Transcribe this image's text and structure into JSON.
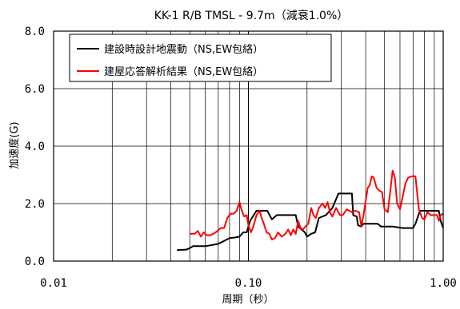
{
  "chart_data": {
    "type": "line",
    "title": "KK-1 R/B TMSL - 9.7m（減衰1.0%）",
    "xlabel": "周期（秒）",
    "ylabel": "加速度(G)",
    "xscale": "log",
    "xlim": [
      0.01,
      1.0
    ],
    "ylim": [
      0.0,
      8.0
    ],
    "x_ticks": [
      0.01,
      0.1,
      1.0
    ],
    "x_tick_labels": [
      "0.01",
      "0.10",
      "1.00"
    ],
    "y_ticks": [
      0,
      2,
      4,
      6,
      8
    ],
    "y_tick_labels": [
      "0.0",
      "2.0",
      "4.0",
      "6.0",
      "8.0"
    ],
    "grid": true,
    "legend_position": "top-left",
    "series": [
      {
        "name": "建設時設計地震動（NS,EW包絡）",
        "color": "#000000",
        "points": [
          [
            0.043,
            0.38
          ],
          [
            0.048,
            0.4
          ],
          [
            0.05,
            0.45
          ],
          [
            0.052,
            0.52
          ],
          [
            0.06,
            0.52
          ],
          [
            0.064,
            0.55
          ],
          [
            0.07,
            0.6
          ],
          [
            0.075,
            0.7
          ],
          [
            0.08,
            0.8
          ],
          [
            0.085,
            0.82
          ],
          [
            0.09,
            0.85
          ],
          [
            0.094,
            1.0
          ],
          [
            0.098,
            1.0
          ],
          [
            0.102,
            1.4
          ],
          [
            0.11,
            1.75
          ],
          [
            0.125,
            1.75
          ],
          [
            0.132,
            1.45
          ],
          [
            0.14,
            1.6
          ],
          [
            0.16,
            1.6
          ],
          [
            0.175,
            1.6
          ],
          [
            0.18,
            1.2
          ],
          [
            0.195,
            1.0
          ],
          [
            0.2,
            0.85
          ],
          [
            0.21,
            0.95
          ],
          [
            0.22,
            1.0
          ],
          [
            0.23,
            1.5
          ],
          [
            0.25,
            1.6
          ],
          [
            0.27,
            1.85
          ],
          [
            0.29,
            2.35
          ],
          [
            0.34,
            2.35
          ],
          [
            0.345,
            1.6
          ],
          [
            0.36,
            1.55
          ],
          [
            0.365,
            1.25
          ],
          [
            0.38,
            1.2
          ],
          [
            0.39,
            1.3
          ],
          [
            0.42,
            1.3
          ],
          [
            0.46,
            1.3
          ],
          [
            0.48,
            1.2
          ],
          [
            0.55,
            1.2
          ],
          [
            0.62,
            1.15
          ],
          [
            0.7,
            1.15
          ],
          [
            0.72,
            1.3
          ],
          [
            0.76,
            1.75
          ],
          [
            0.8,
            1.75
          ],
          [
            0.95,
            1.75
          ],
          [
            0.97,
            1.4
          ],
          [
            1.0,
            1.15
          ]
        ]
      },
      {
        "name": "建屋応答解析結果（NS,EW包絡）",
        "color": "#ff0000",
        "points": [
          [
            0.05,
            0.95
          ],
          [
            0.053,
            0.95
          ],
          [
            0.055,
            1.05
          ],
          [
            0.057,
            0.85
          ],
          [
            0.059,
            1.0
          ],
          [
            0.061,
            0.9
          ],
          [
            0.064,
            0.9
          ],
          [
            0.066,
            0.95
          ],
          [
            0.068,
            1.0
          ],
          [
            0.072,
            1.15
          ],
          [
            0.075,
            1.15
          ],
          [
            0.078,
            1.5
          ],
          [
            0.081,
            1.65
          ],
          [
            0.084,
            1.65
          ],
          [
            0.087,
            1.75
          ],
          [
            0.09,
            2.05
          ],
          [
            0.092,
            1.8
          ],
          [
            0.095,
            1.55
          ],
          [
            0.098,
            1.6
          ],
          [
            0.1,
            1.25
          ],
          [
            0.103,
            1.0
          ],
          [
            0.106,
            1.2
          ],
          [
            0.11,
            1.6
          ],
          [
            0.114,
            1.75
          ],
          [
            0.117,
            1.5
          ],
          [
            0.12,
            1.3
          ],
          [
            0.124,
            1.0
          ],
          [
            0.128,
            0.95
          ],
          [
            0.132,
            0.75
          ],
          [
            0.137,
            0.8
          ],
          [
            0.142,
            1.0
          ],
          [
            0.148,
            0.85
          ],
          [
            0.155,
            0.95
          ],
          [
            0.16,
            1.1
          ],
          [
            0.165,
            0.9
          ],
          [
            0.17,
            1.1
          ],
          [
            0.175,
            0.95
          ],
          [
            0.18,
            1.4
          ],
          [
            0.185,
            1.15
          ],
          [
            0.19,
            1.1
          ],
          [
            0.196,
            1.2
          ],
          [
            0.203,
            1.3
          ],
          [
            0.21,
            1.85
          ],
          [
            0.216,
            1.6
          ],
          [
            0.222,
            1.5
          ],
          [
            0.23,
            1.85
          ],
          [
            0.24,
            2.0
          ],
          [
            0.248,
            1.85
          ],
          [
            0.255,
            2.05
          ],
          [
            0.262,
            1.7
          ],
          [
            0.27,
            1.55
          ],
          [
            0.282,
            1.85
          ],
          [
            0.295,
            1.6
          ],
          [
            0.305,
            1.6
          ],
          [
            0.32,
            1.8
          ],
          [
            0.34,
            1.7
          ],
          [
            0.355,
            1.75
          ],
          [
            0.37,
            1.7
          ],
          [
            0.38,
            1.2
          ],
          [
            0.39,
            1.6
          ],
          [
            0.4,
            2.1
          ],
          [
            0.41,
            2.55
          ],
          [
            0.42,
            2.65
          ],
          [
            0.43,
            2.95
          ],
          [
            0.44,
            2.9
          ],
          [
            0.455,
            2.55
          ],
          [
            0.47,
            2.45
          ],
          [
            0.485,
            2.4
          ],
          [
            0.5,
            1.8
          ],
          [
            0.52,
            1.7
          ],
          [
            0.535,
            2.45
          ],
          [
            0.55,
            3.15
          ],
          [
            0.565,
            2.9
          ],
          [
            0.58,
            2.0
          ],
          [
            0.6,
            1.8
          ],
          [
            0.62,
            2.25
          ],
          [
            0.64,
            2.7
          ],
          [
            0.66,
            2.9
          ],
          [
            0.69,
            2.95
          ],
          [
            0.72,
            2.95
          ],
          [
            0.75,
            1.8
          ],
          [
            0.78,
            1.5
          ],
          [
            0.8,
            1.45
          ],
          [
            0.83,
            1.7
          ],
          [
            0.86,
            1.6
          ],
          [
            0.9,
            1.6
          ],
          [
            0.93,
            1.6
          ],
          [
            0.95,
            1.4
          ],
          [
            0.97,
            1.6
          ],
          [
            1.0,
            1.65
          ]
        ]
      }
    ]
  }
}
